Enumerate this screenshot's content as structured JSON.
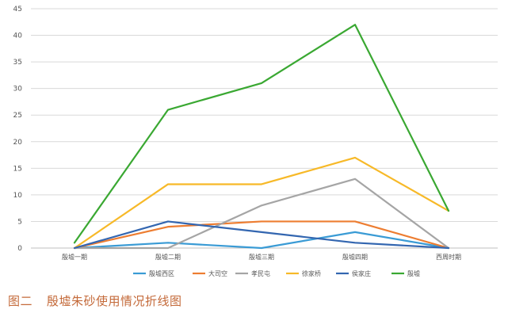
{
  "chart_data": {
    "type": "line",
    "title": "",
    "xlabel": "",
    "ylabel": "",
    "categories": [
      "殷墟一期",
      "殷墟二期",
      "殷墟三期",
      "殷墟四期",
      "西周时期"
    ],
    "ylim": [
      0,
      45
    ],
    "yticks": [
      0,
      5,
      10,
      15,
      20,
      25,
      30,
      35,
      40,
      45
    ],
    "grid": true,
    "legend_position": "bottom",
    "series": [
      {
        "name": "殷墟西区",
        "color": "#3a9bd5",
        "values": [
          0,
          1,
          0,
          3,
          0
        ]
      },
      {
        "name": "大司空",
        "color": "#ed7d31",
        "values": [
          0,
          4,
          5,
          5,
          0
        ]
      },
      {
        "name": "孝民屯",
        "color": "#a5a5a5",
        "values": [
          0,
          0,
          8,
          13,
          0
        ]
      },
      {
        "name": "徐家桥",
        "color": "#f7b928",
        "values": [
          0,
          12,
          12,
          17,
          7
        ]
      },
      {
        "name": "侯家庄",
        "color": "#3366b0",
        "values": [
          0,
          5,
          3,
          1,
          0
        ]
      },
      {
        "name": "殷墟",
        "color": "#3aa832",
        "values": [
          1,
          26,
          31,
          42,
          7
        ]
      }
    ]
  },
  "caption": {
    "figure_number": "图二",
    "text": "殷墟朱砂使用情况折线图"
  }
}
